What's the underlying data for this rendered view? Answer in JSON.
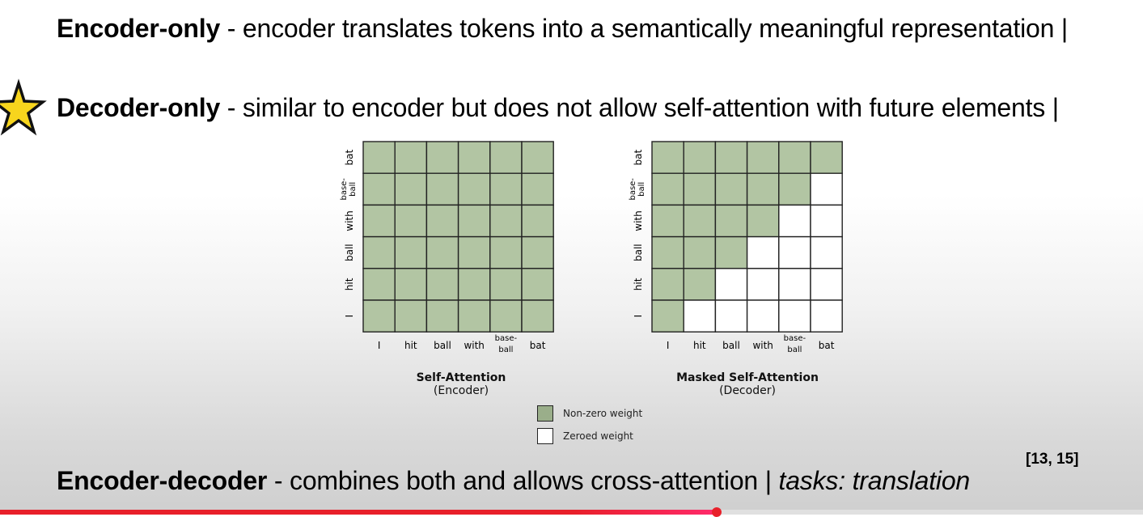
{
  "lines": {
    "encoder_only": {
      "title": "Encoder-only",
      "text": " - encoder translates tokens into a semantically meaningful representation |"
    },
    "decoder_only": {
      "title": "Decoder-only",
      "text": " - similar to encoder but does not allow self-attention with future elements |"
    },
    "encoder_decoder": {
      "title": "Encoder-decoder",
      "text": " - combines both and allows cross-attention | ",
      "tasks": "tasks: translation"
    }
  },
  "references": "[13, 15]",
  "figure": {
    "tokens_x": [
      "I",
      "hit",
      "ball",
      "with",
      "base-\nball",
      "bat"
    ],
    "tokens_y": [
      "bat",
      "base-\nball",
      "with",
      "ball",
      "hit",
      "I"
    ],
    "self_attention": {
      "title": "Self-Attention",
      "subtitle": "(Encoder)"
    },
    "masked_attention": {
      "title": "Masked Self-Attention",
      "subtitle": "(Decoder)"
    },
    "legend": {
      "nonzero": "Non-zero weight",
      "zeroed": "Zeroed weight"
    }
  },
  "colors": {
    "nonzero": "#b2c5a3",
    "zeroed": "#ffffff",
    "grid": "#222222",
    "progress": "#e8202a"
  },
  "icons": {
    "star": "star-icon"
  },
  "video_progress": 0.627
}
